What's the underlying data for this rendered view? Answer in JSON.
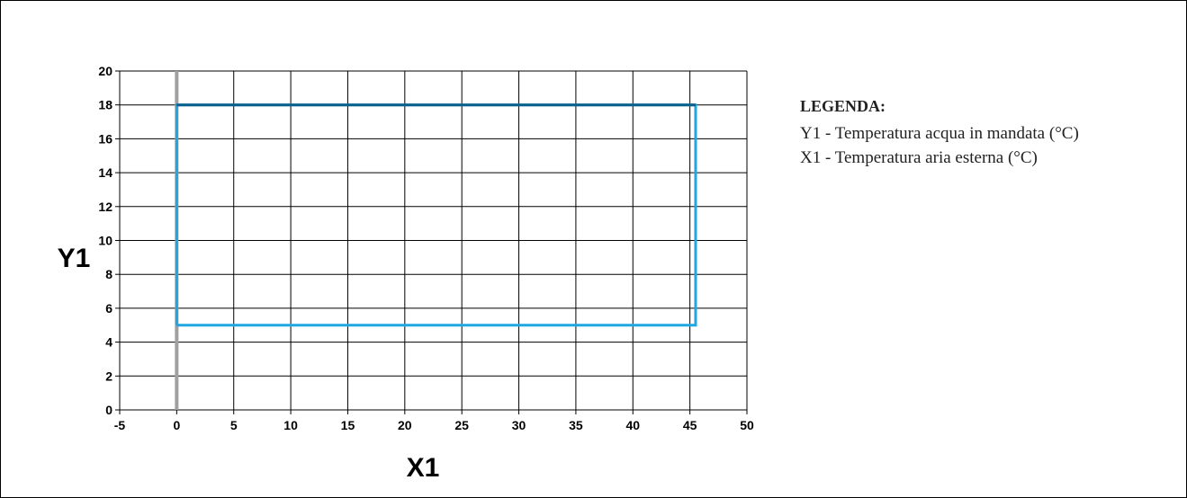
{
  "chart_data": {
    "type": "area",
    "title": "",
    "xlabel": "X1",
    "ylabel": "Y1",
    "xlim": [
      -5,
      50
    ],
    "ylim": [
      0,
      20
    ],
    "x_ticks": [
      -5,
      0,
      5,
      10,
      15,
      20,
      25,
      30,
      35,
      40,
      45,
      50
    ],
    "y_ticks": [
      0,
      2,
      4,
      6,
      8,
      10,
      12,
      14,
      16,
      18,
      20
    ],
    "grid": true,
    "x_zero_line": 0,
    "series": [
      {
        "x": [
          0,
          45.5,
          45.5,
          0,
          0
        ],
        "y": [
          5,
          5,
          18,
          18,
          5
        ]
      }
    ],
    "colors": {
      "envelope": "#1ea7e1",
      "envelope_top": "#0a5e8a",
      "zero_line": "#a0a0a0",
      "grid": "#000000"
    }
  },
  "legend": {
    "title": "LEGENDA:",
    "entries": [
      "Y1 - Temperatura acqua in mandata (°C)",
      "X1 - Temperatura aria esterna (°C)"
    ]
  }
}
